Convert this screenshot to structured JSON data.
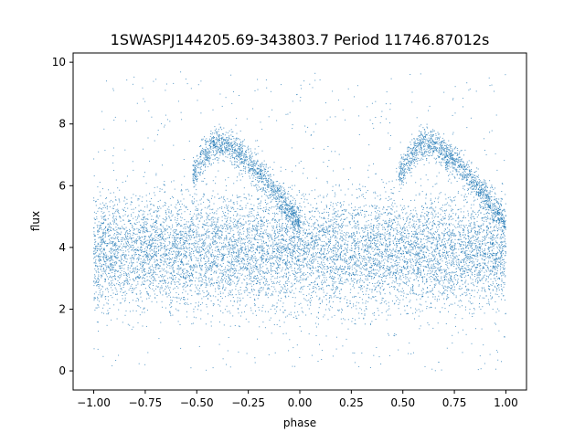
{
  "chart_data": {
    "type": "scatter",
    "title": "1SWASPJ144205.69-343803.7 Period 11746.87012s",
    "xlabel": "phase",
    "ylabel": "flux",
    "xlim": [
      -1.1,
      1.1
    ],
    "ylim": [
      -0.62,
      10.3
    ],
    "grid": false,
    "marker_color": "#1f77b4",
    "x_ticks": [
      {
        "value": -1.0,
        "label": "−1.00"
      },
      {
        "value": -0.75,
        "label": "−0.75"
      },
      {
        "value": -0.5,
        "label": "−0.50"
      },
      {
        "value": -0.25,
        "label": "−0.25"
      },
      {
        "value": 0.0,
        "label": "0.00"
      },
      {
        "value": 0.25,
        "label": "0.25"
      },
      {
        "value": 0.5,
        "label": "0.50"
      },
      {
        "value": 0.75,
        "label": "0.75"
      },
      {
        "value": 1.0,
        "label": "1.00"
      }
    ],
    "y_ticks": [
      {
        "value": 0,
        "label": "0"
      },
      {
        "value": 2,
        "label": "2"
      },
      {
        "value": 4,
        "label": "4"
      },
      {
        "value": 6,
        "label": "6"
      },
      {
        "value": 8,
        "label": "8"
      },
      {
        "value": 10,
        "label": "10"
      }
    ],
    "series": [
      {
        "phase_range": [
          -1.0,
          1.0
        ],
        "main_band": {
          "center_flux": 3.9,
          "typical_range": [
            2.0,
            6.0
          ],
          "full_range": [
            0.0,
            9.7
          ]
        },
        "secondary_arc": [
          {
            "phase": -0.52,
            "flux": 6.3
          },
          {
            "phase": -0.47,
            "flux": 6.9
          },
          {
            "phase": -0.42,
            "flux": 7.3
          },
          {
            "phase": -0.36,
            "flux": 7.4
          },
          {
            "phase": -0.3,
            "flux": 7.1
          },
          {
            "phase": -0.22,
            "flux": 6.6
          },
          {
            "phase": -0.14,
            "flux": 6.0
          },
          {
            "phase": -0.06,
            "flux": 5.3
          },
          {
            "phase": 0.0,
            "flux": 4.8
          }
        ],
        "secondary_arc_repeat_offset": 1.0
      }
    ]
  }
}
